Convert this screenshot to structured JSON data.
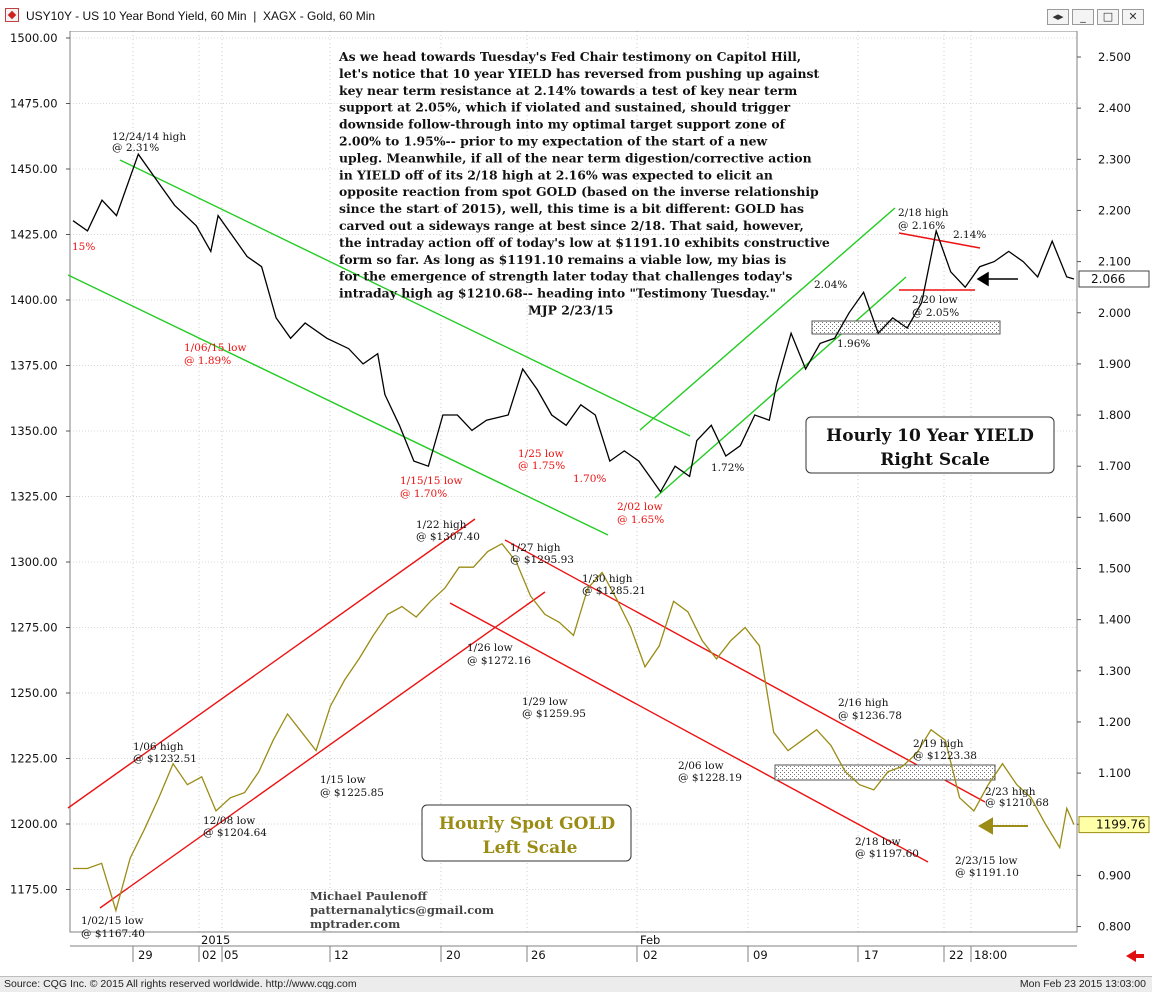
{
  "window": {
    "title": "USY10Y - US 10 Year Bond Yield, 60 Min  |  XAGX - Gold, 60 Min",
    "buttons": [
      "◂▸",
      "_",
      "□",
      "✕"
    ]
  },
  "status": {
    "source": "Source: CQG Inc. © 2015 All rights reserved worldwide.  http://www.cqg.com",
    "datetime": "Mon Feb 23 2015 13:03:00"
  },
  "colors": {
    "yield": "#000000",
    "gold": "#9a8c14",
    "green_channel": "#22cc22",
    "red_channel": "#ee1111",
    "red_label": "#ee1111"
  },
  "chart_data": {
    "type": "line",
    "left_axis": {
      "label": "Hourly Spot GOLD Left Scale",
      "min": 1155,
      "max": 1503,
      "ticks": [
        "1500.00",
        "1475.00",
        "1450.00",
        "1425.00",
        "1400.00",
        "1375.00",
        "1350.00",
        "1325.00",
        "1300.00",
        "1275.00",
        "1250.00",
        "1225.00",
        "1200.00",
        "1175.00"
      ]
    },
    "right_axis": {
      "label": "Hourly 10 Year YIELD Right Scale",
      "min": 0.76,
      "max": 2.58,
      "ticks": [
        "2.500",
        "2.400",
        "2.300",
        "2.200",
        "2.100",
        "2.000",
        "1.900",
        "1.800",
        "1.700",
        "1.600",
        "1.500",
        "1.400",
        "1.300",
        "1.200",
        "1.100",
        "1.000",
        "0.900",
        "0.800"
      ]
    },
    "x_ticks": [
      "29",
      "02",
      "05",
      "12",
      "20",
      "26",
      "02",
      "09",
      "17",
      "22",
      "18:00"
    ],
    "x_period_labels": [
      "2015",
      "Feb"
    ],
    "last_values": {
      "yield": "2.066",
      "gold": "1199.76"
    },
    "series": [
      {
        "name": "Hourly 10 Year YIELD",
        "axis": "right",
        "points": [
          [
            0,
            2.18
          ],
          [
            2,
            2.16
          ],
          [
            4,
            2.22
          ],
          [
            6,
            2.19
          ],
          [
            9,
            2.31
          ],
          [
            12,
            2.25
          ],
          [
            14,
            2.21
          ],
          [
            17,
            2.17
          ],
          [
            19,
            2.12
          ],
          [
            20,
            2.19
          ],
          [
            22,
            2.15
          ],
          [
            24,
            2.11
          ],
          [
            26,
            2.09
          ],
          [
            28,
            1.99
          ],
          [
            30,
            1.95
          ],
          [
            32,
            1.98
          ],
          [
            35,
            1.95
          ],
          [
            38,
            1.93
          ],
          [
            40,
            1.9
          ],
          [
            42,
            1.92
          ],
          [
            43,
            1.84
          ],
          [
            45,
            1.78
          ],
          [
            47,
            1.71
          ],
          [
            49,
            1.7
          ],
          [
            51,
            1.8
          ],
          [
            53,
            1.8
          ],
          [
            55,
            1.77
          ],
          [
            57,
            1.79
          ],
          [
            60,
            1.8
          ],
          [
            62,
            1.89
          ],
          [
            64,
            1.85
          ],
          [
            66,
            1.8
          ],
          [
            68,
            1.78
          ],
          [
            70,
            1.82
          ],
          [
            72,
            1.8
          ],
          [
            74,
            1.71
          ],
          [
            76,
            1.73
          ],
          [
            78,
            1.71
          ],
          [
            80,
            1.67
          ],
          [
            81,
            1.65
          ],
          [
            83,
            1.7
          ],
          [
            85,
            1.68
          ],
          [
            86,
            1.75
          ],
          [
            88,
            1.78
          ],
          [
            90,
            1.72
          ],
          [
            92,
            1.74
          ],
          [
            94,
            1.8
          ],
          [
            96,
            1.79
          ],
          [
            97,
            1.86
          ],
          [
            99,
            1.96
          ],
          [
            101,
            1.89
          ],
          [
            103,
            1.94
          ],
          [
            105,
            1.95
          ],
          [
            107,
            2.0
          ],
          [
            109,
            2.04
          ],
          [
            111,
            1.96
          ],
          [
            113,
            1.99
          ],
          [
            115,
            1.97
          ],
          [
            117,
            2.02
          ],
          [
            119,
            2.16
          ],
          [
            121,
            2.08
          ],
          [
            123,
            2.05
          ],
          [
            125,
            2.09
          ],
          [
            127,
            2.1
          ],
          [
            129,
            2.12
          ],
          [
            131,
            2.1
          ],
          [
            133,
            2.07
          ],
          [
            135,
            2.14
          ],
          [
            137,
            2.07
          ],
          [
            138,
            2.066
          ]
        ]
      },
      {
        "name": "Hourly Spot GOLD",
        "axis": "left",
        "points": [
          [
            0,
            1183
          ],
          [
            2,
            1183
          ],
          [
            4,
            1185
          ],
          [
            6,
            1167
          ],
          [
            8,
            1187
          ],
          [
            10,
            1198
          ],
          [
            12,
            1210
          ],
          [
            14,
            1223
          ],
          [
            16,
            1215
          ],
          [
            18,
            1218
          ],
          [
            20,
            1205
          ],
          [
            22,
            1210
          ],
          [
            24,
            1212
          ],
          [
            26,
            1220
          ],
          [
            28,
            1232
          ],
          [
            30,
            1242
          ],
          [
            32,
            1235
          ],
          [
            34,
            1228
          ],
          [
            36,
            1245
          ],
          [
            38,
            1255
          ],
          [
            40,
            1263
          ],
          [
            42,
            1272
          ],
          [
            44,
            1280
          ],
          [
            46,
            1283
          ],
          [
            48,
            1279
          ],
          [
            50,
            1285
          ],
          [
            52,
            1290
          ],
          [
            54,
            1298
          ],
          [
            56,
            1298
          ],
          [
            58,
            1304
          ],
          [
            60,
            1307
          ],
          [
            62,
            1300
          ],
          [
            64,
            1287
          ],
          [
            66,
            1280
          ],
          [
            68,
            1277
          ],
          [
            70,
            1272
          ],
          [
            72,
            1290
          ],
          [
            74,
            1296
          ],
          [
            76,
            1286
          ],
          [
            78,
            1275
          ],
          [
            80,
            1260
          ],
          [
            82,
            1268
          ],
          [
            84,
            1285
          ],
          [
            86,
            1281
          ],
          [
            88,
            1270
          ],
          [
            90,
            1263
          ],
          [
            92,
            1270
          ],
          [
            94,
            1275
          ],
          [
            96,
            1268
          ],
          [
            98,
            1235
          ],
          [
            100,
            1228
          ],
          [
            102,
            1232
          ],
          [
            104,
            1236
          ],
          [
            106,
            1230
          ],
          [
            108,
            1220
          ],
          [
            110,
            1215
          ],
          [
            112,
            1213
          ],
          [
            114,
            1220
          ],
          [
            116,
            1222
          ],
          [
            118,
            1227
          ],
          [
            120,
            1236
          ],
          [
            122,
            1232
          ],
          [
            124,
            1210
          ],
          [
            126,
            1205
          ],
          [
            128,
            1215
          ],
          [
            130,
            1223
          ],
          [
            132,
            1215
          ],
          [
            134,
            1210
          ],
          [
            136,
            1200
          ],
          [
            138,
            1191
          ],
          [
            139,
            1206
          ],
          [
            140,
            1199.76
          ]
        ]
      }
    ],
    "annotations": [
      "12/24/14 high",
      "@ 2.31%",
      "15%",
      "1/06/15 low",
      "@ 1.89%",
      "1/15/15 low",
      "@ 1.70%",
      "1/25 low",
      "@ 1.75%",
      "1.70%",
      "2/02 low",
      "@ 1.65%",
      "1.72%",
      "2.04%",
      "1.96%",
      "2/18 high",
      "@ 2.16%",
      "2.14%",
      "2/20 low",
      "@ 2.05%",
      "1/22 high",
      "@ $1307.40",
      "1/27 high",
      "@ $1295.93",
      "1/30 high",
      "@ $1285.21",
      "1/26 low",
      "@ $1272.16",
      "1/29 low",
      "@ $1259.95",
      "1/06 high",
      "@ $1232.51",
      "1/15 low",
      "@ $1225.85",
      "12/08 low",
      "@ $1204.64",
      "1/02/15 low",
      "@ $1167.40",
      "2/06 low",
      "@ $1228.19",
      "2/16 high",
      "@ $1236.78",
      "2/19 high",
      "@ $1223.38",
      "2/23 high",
      "@ $1210.68",
      "2/18 low",
      "@ $1197.60",
      "2/23/15 low",
      "@ $1191.10"
    ],
    "commentary": [
      "As we head towards Tuesday's Fed Chair testimony on Capitol Hill,",
      "let's notice that 10 year YIELD has reversed from pushing up against",
      "key near term resistance at 2.14% towards a test of key near term",
      "support at 2.05%, which if violated and sustained, should trigger",
      "downside follow-through into my optimal target support zone of",
      "2.00% to 1.95%-- prior to my expectation of the start of a new",
      "upleg. Meanwhile, if all of the near term digestion/corrective action",
      "in YIELD off of its 2/18 high at 2.16% was expected to elicit an",
      "opposite reaction from spot GOLD (based on the inverse relationship",
      "since the start of 2015), well, this time is a bit different: GOLD has",
      "carved out a sideways range at best since 2/18. That said, however,",
      "the intraday action off of today's low at $1191.10 exhibits constructive",
      "form so far. As long as $1191.10 remains a viable low, my bias is",
      "for the emergence of strength later today that challenges today's",
      "intraday high ag $1210.68-- heading into \"Testimony Tuesday.\"",
      "MJP 2/23/15"
    ],
    "yield_box": [
      "Hourly 10 Year YIELD",
      "Right Scale"
    ],
    "gold_box": [
      "Hourly Spot GOLD",
      "Left Scale"
    ],
    "credits": [
      "Michael Paulenoff",
      "patternanalytics@gmail.com",
      "mptrader.com"
    ]
  }
}
